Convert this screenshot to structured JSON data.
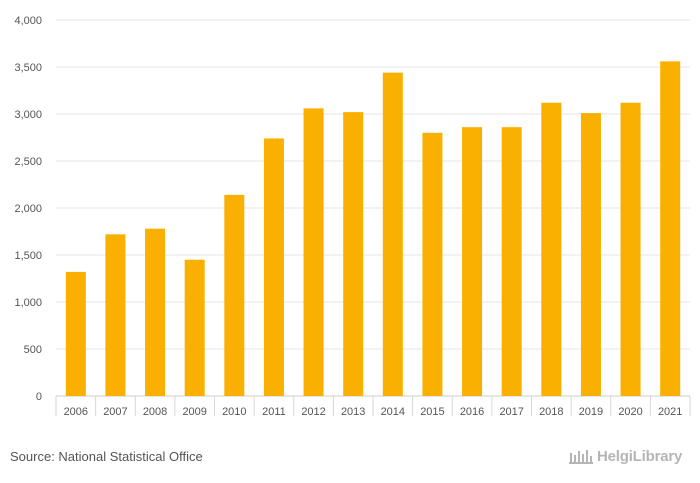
{
  "chart_data": {
    "type": "bar",
    "title": "",
    "xlabel": "",
    "ylabel": "",
    "categories": [
      "2006",
      "2007",
      "2008",
      "2009",
      "2010",
      "2011",
      "2012",
      "2013",
      "2014",
      "2015",
      "2016",
      "2017",
      "2018",
      "2019",
      "2020",
      "2021"
    ],
    "values": [
      1320,
      1720,
      1780,
      1450,
      2140,
      2740,
      3060,
      3020,
      3440,
      2800,
      2860,
      2860,
      3120,
      3010,
      3120,
      3560
    ],
    "ylim": [
      0,
      4000
    ],
    "yticks": [
      0,
      500,
      1000,
      1500,
      2000,
      2500,
      3000,
      3500,
      4000
    ],
    "ytick_labels": [
      "0",
      "500",
      "1,000",
      "1,500",
      "2,000",
      "2,500",
      "3,000",
      "3,500",
      "4,000"
    ],
    "grid": true,
    "legend": "none",
    "bar_color": "#f9b000",
    "grid_color": "#e6e6e6"
  },
  "footer": {
    "source": "Source: National Statistical Office",
    "brand_name": "HelgiLibrary",
    "brand_icon": "library-building-icon"
  }
}
